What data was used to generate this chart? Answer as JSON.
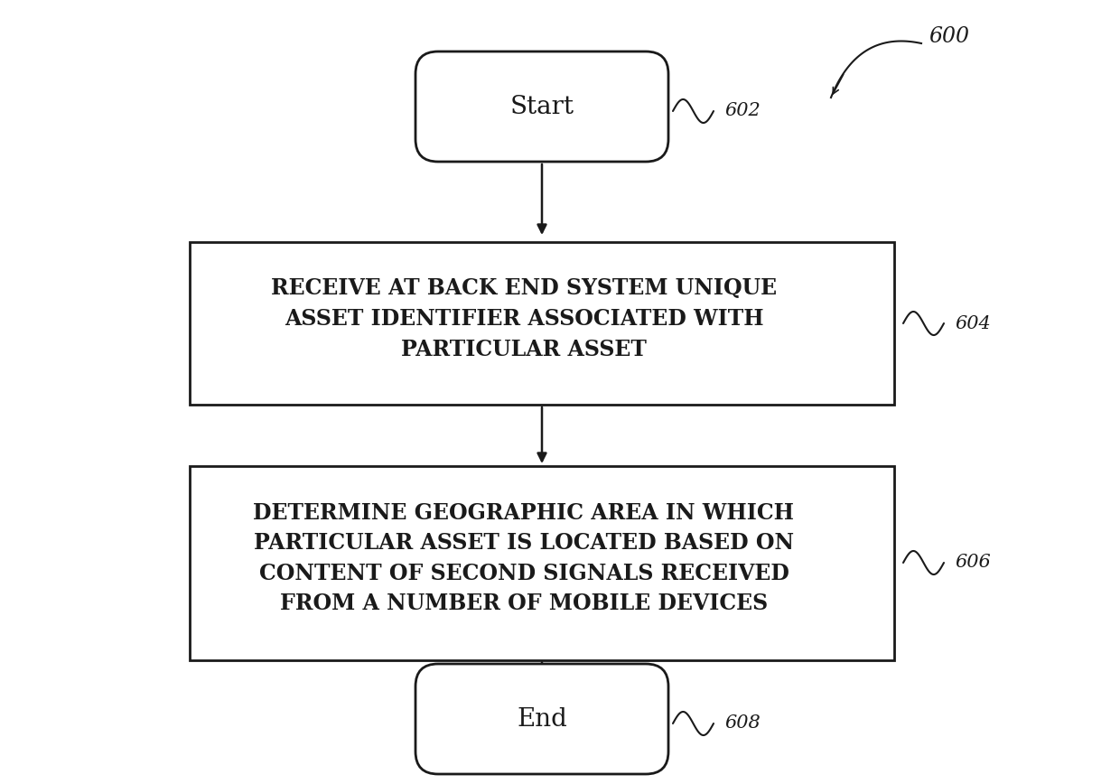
{
  "bg_color": "#ffffff",
  "start_label": "Start",
  "start_ref": "602",
  "box1_text": "RECEIVE AT BACK END SYSTEM UNIQUE\nASSET IDENTIFIER ASSOCIATED WITH\nPARTICULAR ASSET",
  "box1_ref": "604",
  "box2_text": "DETERMINE GEOGRAPHIC AREA IN WHICH\nPARTICULAR ASSET IS LOCATED BASED ON\nCONTENT OF SECOND SIGNALS RECEIVED\nFROM A NUMBER OF MOBILE DEVICES",
  "box2_ref": "606",
  "end_label": "End",
  "end_ref": "608",
  "top_ref": "600",
  "line_color": "#1a1a1a",
  "text_color": "#1a1a1a",
  "box_fill": "#ffffff",
  "box_edge": "#1a1a1a",
  "arrow_color": "#1a1a1a"
}
